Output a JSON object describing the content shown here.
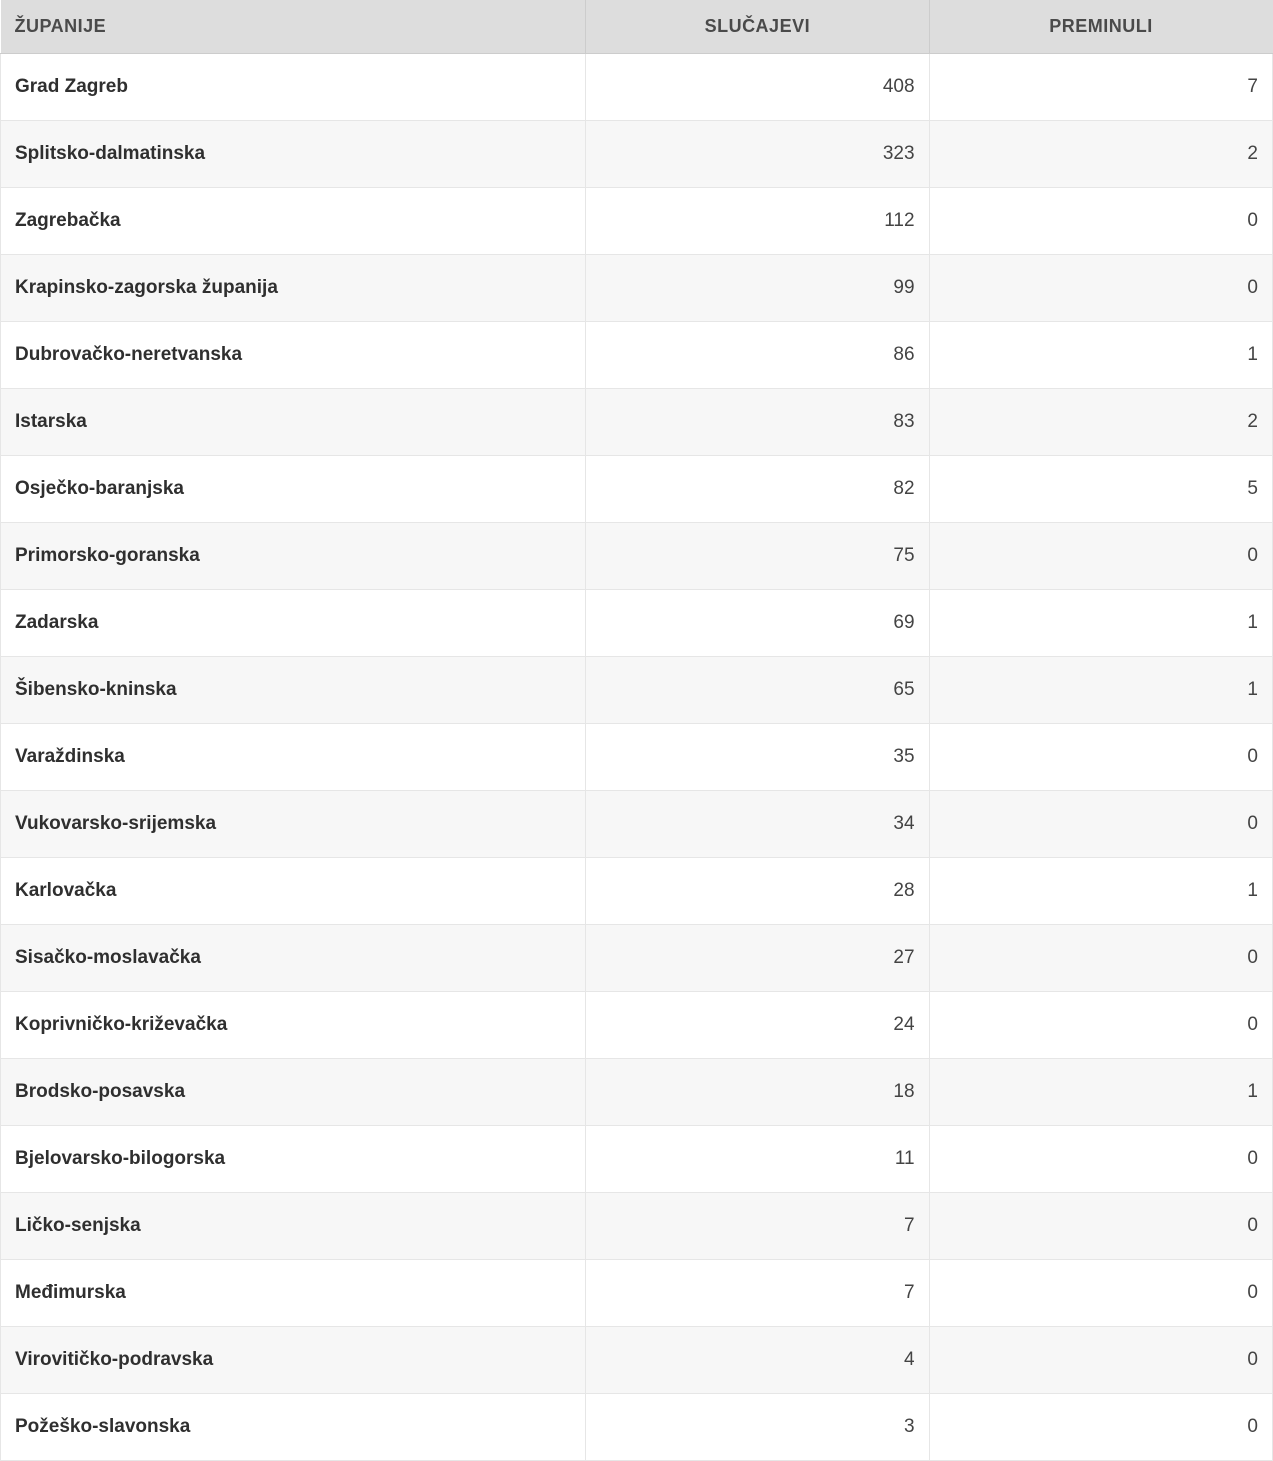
{
  "table": {
    "type": "table",
    "background_color": "#ffffff",
    "header_bg_color": "#dddddd",
    "row_odd_bg_color": "#ffffff",
    "row_even_bg_color": "#f7f7f7",
    "border_color": "#e6e6e6",
    "header_border_color": "#cccccc",
    "header_text_color": "#4a4a4a",
    "body_text_color": "#333333",
    "header_fontsize_pt": 13,
    "body_fontsize_pt": 14,
    "county_fontweight": 700,
    "num_fontweight": 400,
    "column_widths_pct": [
      46,
      27,
      27
    ],
    "columns": [
      {
        "key": "county",
        "label": "Županije",
        "align": "left",
        "header_align": "left"
      },
      {
        "key": "cases",
        "label": "Slučajevi",
        "align": "right",
        "header_align": "center"
      },
      {
        "key": "deaths",
        "label": "Preminuli",
        "align": "right",
        "header_align": "center"
      }
    ],
    "rows": [
      {
        "county": "Grad Zagreb",
        "cases": 408,
        "deaths": 7
      },
      {
        "county": "Splitsko-dalmatinska",
        "cases": 323,
        "deaths": 2
      },
      {
        "county": "Zagrebačka",
        "cases": 112,
        "deaths": 0
      },
      {
        "county": "Krapinsko-zagorska županija",
        "cases": 99,
        "deaths": 0
      },
      {
        "county": "Dubrovačko-neretvanska",
        "cases": 86,
        "deaths": 1
      },
      {
        "county": "Istarska",
        "cases": 83,
        "deaths": 2
      },
      {
        "county": "Osječko-baranjska",
        "cases": 82,
        "deaths": 5
      },
      {
        "county": "Primorsko-goranska",
        "cases": 75,
        "deaths": 0
      },
      {
        "county": "Zadarska",
        "cases": 69,
        "deaths": 1
      },
      {
        "county": "Šibensko-kninska",
        "cases": 65,
        "deaths": 1
      },
      {
        "county": "Varaždinska",
        "cases": 35,
        "deaths": 0
      },
      {
        "county": "Vukovarsko-srijemska",
        "cases": 34,
        "deaths": 0
      },
      {
        "county": "Karlovačka",
        "cases": 28,
        "deaths": 1
      },
      {
        "county": "Sisačko-moslavačka",
        "cases": 27,
        "deaths": 0
      },
      {
        "county": "Koprivničko-križevačka",
        "cases": 24,
        "deaths": 0
      },
      {
        "county": "Brodsko-posavska",
        "cases": 18,
        "deaths": 1
      },
      {
        "county": "Bjelovarsko-bilogorska",
        "cases": 11,
        "deaths": 0
      },
      {
        "county": "Ličko-senjska",
        "cases": 7,
        "deaths": 0
      },
      {
        "county": "Međimurska",
        "cases": 7,
        "deaths": 0
      },
      {
        "county": "Virovitičko-podravska",
        "cases": 4,
        "deaths": 0
      },
      {
        "county": "Požeško-slavonska",
        "cases": 3,
        "deaths": 0
      }
    ]
  }
}
